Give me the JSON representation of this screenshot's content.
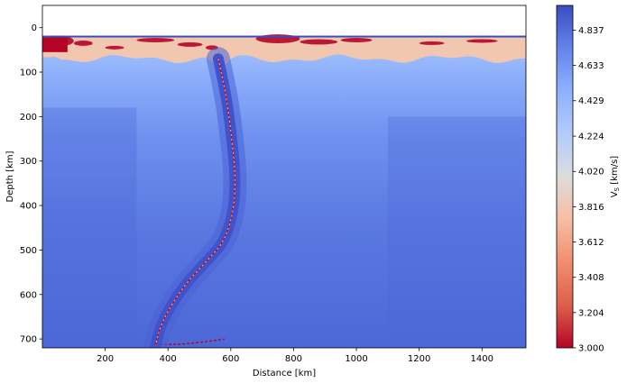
{
  "chart_data": {
    "type": "heatmap",
    "title": "",
    "xlabel": "Distance [km]",
    "ylabel": "Depth [km]",
    "xlim": [
      0,
      1540
    ],
    "ylim": [
      720,
      -50
    ],
    "y_inverted": true,
    "x_ticks": [
      200,
      400,
      600,
      800,
      1000,
      1200,
      1400
    ],
    "x_tick_labels": [
      "200",
      "400",
      "600",
      "800",
      "1000",
      "1200",
      "1400"
    ],
    "y_ticks": [
      0,
      100,
      200,
      300,
      400,
      500,
      600,
      700
    ],
    "y_tick_labels": [
      "0",
      "100",
      "200",
      "300",
      "400",
      "500",
      "600",
      "700"
    ],
    "colorbar": {
      "label_prefix": "V",
      "label_sub": "S",
      "label_suffix": " [km/s]",
      "colormap": "coolwarm_r",
      "vmin": 3.0,
      "vmax": 4.98,
      "ticks": [
        3.0,
        3.204,
        3.408,
        3.612,
        3.816,
        4.02,
        4.224,
        4.429,
        4.633,
        4.837
      ],
      "tick_labels": [
        "3.000",
        "3.204",
        "3.408",
        "3.612",
        "3.816",
        "4.020",
        "4.224",
        "4.429",
        "4.633",
        "4.837"
      ],
      "position": "right"
    },
    "features": {
      "surface_depth_km": 20,
      "crust_base_depth_km": 70,
      "slab_path": [
        [
          560,
          70
        ],
        [
          585,
          150
        ],
        [
          600,
          230
        ],
        [
          615,
          330
        ],
        [
          610,
          410
        ],
        [
          580,
          480
        ],
        [
          530,
          520
        ],
        [
          450,
          580
        ],
        [
          380,
          660
        ],
        [
          360,
          715
        ]
      ]
    },
    "colors": {
      "low_velocity": "#b40426",
      "crust": "#f2c7b0",
      "mantle_shallow": "#8badfa",
      "mantle_deep": "#3f54cc",
      "high_velocity": "#3b4cc0"
    }
  }
}
